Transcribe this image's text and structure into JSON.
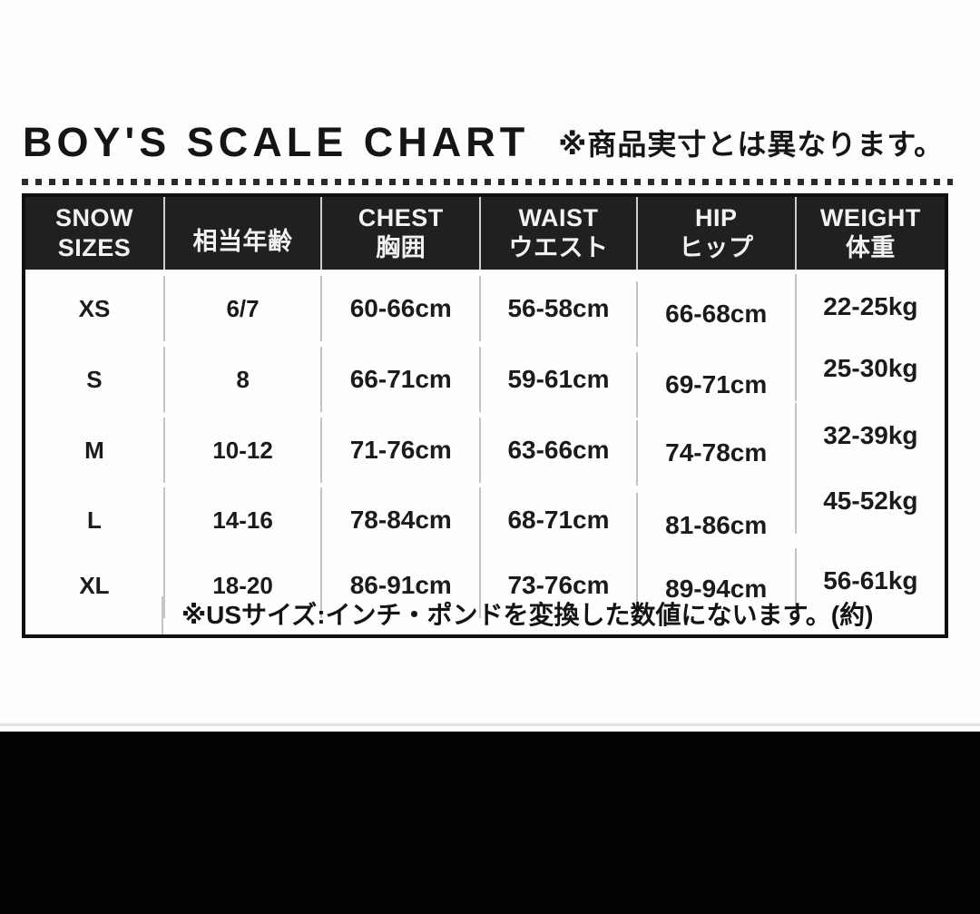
{
  "header": {
    "title": "BOY'S SCALE CHART",
    "disclaimer": "※商品実寸とは異なります。"
  },
  "table": {
    "columns": [
      {
        "line1": "SNOW",
        "line2": "SIZES"
      },
      {
        "line1": "相当年齢",
        "line2": ""
      },
      {
        "line1": "CHEST",
        "line2": "胸囲"
      },
      {
        "line1": "WAIST",
        "line2": "ウエスト"
      },
      {
        "line1": "HIP",
        "line2": "ヒップ"
      },
      {
        "line1": "WEIGHT",
        "line2": "体重"
      }
    ],
    "rows": [
      {
        "size": "XS",
        "age": "6/7",
        "chest": "60-66cm",
        "waist": "56-58cm",
        "hip": "66-68cm",
        "weight": "22-25kg"
      },
      {
        "size": "S",
        "age": "8",
        "chest": "66-71cm",
        "waist": "59-61cm",
        "hip": "69-71cm",
        "weight": "25-30kg"
      },
      {
        "size": "M",
        "age": "10-12",
        "chest": "71-76cm",
        "waist": "63-66cm",
        "hip": "74-78cm",
        "weight": "32-39kg"
      },
      {
        "size": "L",
        "age": "14-16",
        "chest": "78-84cm",
        "waist": "68-71cm",
        "hip": "81-86cm",
        "weight": "45-52kg"
      },
      {
        "size": "XL",
        "age": "18-20",
        "chest": "86-91cm",
        "waist": "73-76cm",
        "hip": "89-94cm",
        "weight": "56-61kg"
      }
    ],
    "footnote": "※USサイズ:インチ・ポンドを変換した数値にないます。(約)"
  },
  "colors": {
    "letterbox": "#000000",
    "header_bg": "#202020",
    "body_text": "#1a1a1a",
    "divider": "#c4c4c4"
  },
  "chart_data": {
    "type": "table",
    "title": "BOY'S SCALE CHART",
    "subtitle": "※商品実寸とは異なります。",
    "columns": [
      "SNOW SIZES",
      "相当年齢",
      "CHEST 胸囲",
      "WAIST ウエスト",
      "HIP ヒップ",
      "WEIGHT 体重"
    ],
    "rows": [
      [
        "XS",
        "6/7",
        "60-66cm",
        "56-58cm",
        "66-68cm",
        "22-25kg"
      ],
      [
        "S",
        "8",
        "66-71cm",
        "59-61cm",
        "69-71cm",
        "25-30kg"
      ],
      [
        "M",
        "10-12",
        "71-76cm",
        "63-66cm",
        "74-78cm",
        "32-39kg"
      ],
      [
        "L",
        "14-16",
        "78-84cm",
        "68-71cm",
        "81-86cm",
        "45-52kg"
      ],
      [
        "XL",
        "18-20",
        "86-91cm",
        "73-76cm",
        "89-94cm",
        "56-61kg"
      ]
    ],
    "notes": [
      "※USサイズ:インチ・ポンドを変換した数値にないます。(約)"
    ]
  }
}
